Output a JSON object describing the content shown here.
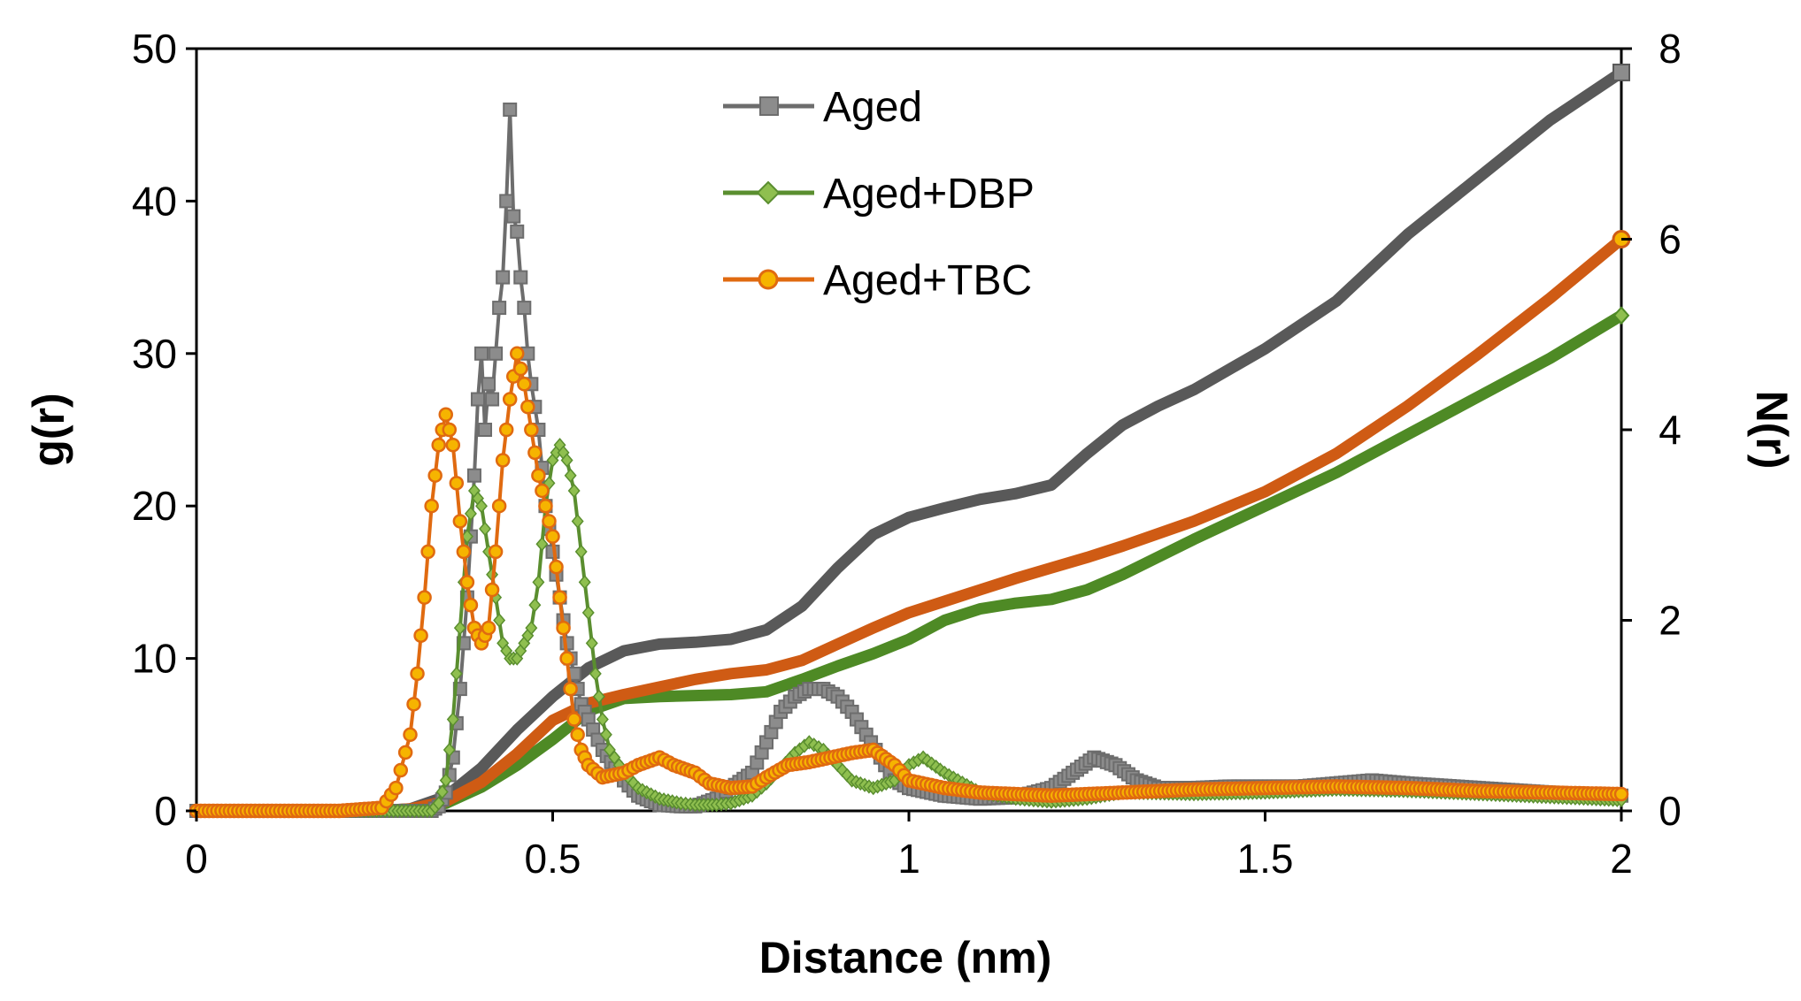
{
  "chart_data": {
    "type": "line",
    "title": "",
    "xlabel": "Distance (nm)",
    "ylabel": "g(r)",
    "y2label": "N(r)",
    "xlim": [
      0,
      2
    ],
    "ylim": [
      0,
      50
    ],
    "y2lim": [
      0,
      8
    ],
    "x_ticks": [
      "0",
      "0.5",
      "1",
      "1.5",
      "2"
    ],
    "y_ticks": [
      "0",
      "10",
      "20",
      "30",
      "40",
      "50"
    ],
    "y2_ticks": [
      "0",
      "2",
      "4",
      "6",
      "8"
    ],
    "legend_position": "top-center",
    "series": [
      {
        "name": "Aged",
        "color": "#6d6d6d",
        "marker": "square",
        "axis": "left",
        "kind": "g(r)",
        "x": [
          0,
          0.1,
          0.2,
          0.3,
          0.33,
          0.34,
          0.35,
          0.36,
          0.37,
          0.38,
          0.39,
          0.395,
          0.4,
          0.405,
          0.41,
          0.415,
          0.42,
          0.425,
          0.43,
          0.435,
          0.44,
          0.445,
          0.45,
          0.455,
          0.46,
          0.465,
          0.47,
          0.48,
          0.49,
          0.5,
          0.51,
          0.52,
          0.53,
          0.54,
          0.55,
          0.57,
          0.6,
          0.62,
          0.65,
          0.68,
          0.7,
          0.73,
          0.75,
          0.78,
          0.8,
          0.82,
          0.84,
          0.86,
          0.88,
          0.9,
          0.92,
          0.94,
          0.96,
          0.98,
          1.0,
          1.05,
          1.1,
          1.15,
          1.2,
          1.23,
          1.26,
          1.29,
          1.32,
          1.35,
          1.4,
          1.45,
          1.5,
          1.55,
          1.6,
          1.65,
          1.7,
          1.8,
          1.9,
          2.0
        ],
        "values": [
          0,
          0,
          0,
          0,
          0,
          0.3,
          1.2,
          3.5,
          8,
          14,
          22,
          27,
          30,
          25,
          28,
          27,
          30,
          33,
          35,
          40,
          46,
          39,
          38,
          35,
          33,
          30,
          28,
          25,
          20,
          17,
          14,
          11,
          9,
          7,
          6,
          4,
          2,
          1,
          0.4,
          0.3,
          0.3,
          0.8,
          1.5,
          2.5,
          4.5,
          6.5,
          7.5,
          8,
          8,
          7.5,
          6.5,
          5,
          3.5,
          2,
          1.5,
          1,
          0.8,
          0.9,
          1.5,
          2.5,
          3.5,
          3,
          2,
          1.5,
          1.5,
          1.6,
          1.6,
          1.6,
          1.8,
          2,
          1.8,
          1.5,
          1.2,
          1.0
        ]
      },
      {
        "name": "Aged+DBP",
        "color": "#5a8e2f",
        "marker": "diamond",
        "axis": "left",
        "kind": "g(r)",
        "x": [
          0,
          0.1,
          0.2,
          0.3,
          0.33,
          0.34,
          0.35,
          0.36,
          0.37,
          0.38,
          0.39,
          0.4,
          0.41,
          0.42,
          0.43,
          0.44,
          0.45,
          0.46,
          0.47,
          0.48,
          0.49,
          0.5,
          0.51,
          0.52,
          0.53,
          0.54,
          0.55,
          0.56,
          0.57,
          0.58,
          0.6,
          0.62,
          0.65,
          0.68,
          0.7,
          0.73,
          0.75,
          0.78,
          0.8,
          0.82,
          0.84,
          0.86,
          0.88,
          0.9,
          0.92,
          0.95,
          0.98,
          1.0,
          1.02,
          1.05,
          1.1,
          1.15,
          1.2,
          1.25,
          1.3,
          1.4,
          1.5,
          1.6,
          1.7,
          1.8,
          1.9,
          2.0
        ],
        "values": [
          0,
          0,
          0,
          0,
          0,
          0.5,
          2,
          6,
          12,
          18,
          21,
          20,
          17,
          14,
          11,
          10,
          10,
          11,
          12,
          15,
          20,
          23,
          24,
          23,
          21,
          17,
          13,
          9,
          6,
          4,
          2.5,
          1.5,
          0.8,
          0.5,
          0.4,
          0.4,
          0.5,
          1,
          1.8,
          2.8,
          3.8,
          4.5,
          4,
          3,
          2,
          1.5,
          2,
          3,
          3.5,
          2.5,
          1.2,
          0.8,
          0.6,
          0.8,
          1.2,
          1.1,
          1.2,
          1.4,
          1.3,
          1.1,
          0.9,
          0.7
        ]
      },
      {
        "name": "Aged+TBC",
        "color": "#e06a10",
        "marker": "circle",
        "axis": "left",
        "kind": "g(r)",
        "x": [
          0,
          0.1,
          0.2,
          0.26,
          0.28,
          0.3,
          0.31,
          0.32,
          0.33,
          0.34,
          0.35,
          0.36,
          0.37,
          0.38,
          0.39,
          0.4,
          0.41,
          0.42,
          0.43,
          0.44,
          0.45,
          0.46,
          0.47,
          0.48,
          0.49,
          0.5,
          0.51,
          0.52,
          0.53,
          0.54,
          0.55,
          0.57,
          0.6,
          0.62,
          0.65,
          0.67,
          0.7,
          0.72,
          0.75,
          0.78,
          0.8,
          0.83,
          0.86,
          0.89,
          0.92,
          0.95,
          0.98,
          1.0,
          1.05,
          1.1,
          1.2,
          1.3,
          1.4,
          1.5,
          1.6,
          1.7,
          1.8,
          1.9,
          2.0
        ],
        "values": [
          0,
          0,
          0,
          0.2,
          1.5,
          5,
          9,
          14,
          20,
          24,
          26,
          24,
          19,
          15,
          12,
          11,
          12,
          17,
          23,
          27,
          30,
          28,
          25,
          22,
          20,
          18,
          14,
          10,
          6,
          4,
          3,
          2.2,
          2.5,
          3,
          3.5,
          3,
          2.5,
          1.8,
          1.5,
          1.6,
          2.2,
          3,
          3.2,
          3.5,
          3.8,
          4,
          3,
          2,
          1.5,
          1.2,
          1,
          1.2,
          1.4,
          1.5,
          1.6,
          1.5,
          1.3,
          1.2,
          1.1
        ]
      },
      {
        "name": "Aged N(r)",
        "color": "#595959",
        "marker": "none",
        "axis": "right",
        "kind": "N(r)",
        "x": [
          0,
          0.25,
          0.3,
          0.35,
          0.4,
          0.45,
          0.5,
          0.55,
          0.6,
          0.65,
          0.7,
          0.75,
          0.8,
          0.85,
          0.9,
          0.95,
          1.0,
          1.05,
          1.1,
          1.15,
          1.2,
          1.25,
          1.3,
          1.35,
          1.4,
          1.5,
          1.6,
          1.7,
          1.8,
          1.9,
          2.0
        ],
        "values": [
          0,
          0,
          0.02,
          0.15,
          0.45,
          0.85,
          1.2,
          1.5,
          1.68,
          1.75,
          1.77,
          1.8,
          1.9,
          2.15,
          2.55,
          2.9,
          3.08,
          3.18,
          3.27,
          3.33,
          3.42,
          3.75,
          4.05,
          4.25,
          4.42,
          4.85,
          5.35,
          6.05,
          6.65,
          7.25,
          7.75
        ]
      },
      {
        "name": "Aged+DBP N(r)",
        "color": "#4e8a25",
        "marker": "none",
        "axis": "right",
        "kind": "N(r)",
        "x": [
          0,
          0.25,
          0.3,
          0.35,
          0.4,
          0.45,
          0.5,
          0.55,
          0.6,
          0.65,
          0.7,
          0.75,
          0.8,
          0.85,
          0.9,
          0.95,
          1.0,
          1.05,
          1.1,
          1.15,
          1.2,
          1.25,
          1.3,
          1.4,
          1.5,
          1.6,
          1.7,
          1.8,
          1.9,
          2.0
        ],
        "values": [
          0,
          0,
          0.01,
          0.08,
          0.25,
          0.48,
          0.75,
          1.05,
          1.18,
          1.2,
          1.21,
          1.22,
          1.25,
          1.38,
          1.52,
          1.65,
          1.8,
          2.0,
          2.12,
          2.18,
          2.22,
          2.32,
          2.48,
          2.85,
          3.2,
          3.55,
          3.95,
          4.35,
          4.75,
          5.2
        ]
      },
      {
        "name": "Aged+TBC N(r)",
        "color": "#cf5b14",
        "marker": "circle-end",
        "axis": "right",
        "kind": "N(r)",
        "x": [
          0,
          0.25,
          0.3,
          0.35,
          0.4,
          0.45,
          0.5,
          0.55,
          0.6,
          0.65,
          0.7,
          0.75,
          0.8,
          0.85,
          0.9,
          0.95,
          1.0,
          1.05,
          1.1,
          1.15,
          1.2,
          1.25,
          1.3,
          1.4,
          1.5,
          1.6,
          1.7,
          1.8,
          1.9,
          2.0
        ],
        "values": [
          0,
          0,
          0.02,
          0.1,
          0.3,
          0.6,
          0.95,
          1.13,
          1.22,
          1.3,
          1.38,
          1.44,
          1.48,
          1.58,
          1.75,
          1.92,
          2.08,
          2.2,
          2.32,
          2.44,
          2.55,
          2.66,
          2.78,
          3.04,
          3.35,
          3.75,
          4.25,
          4.8,
          5.38,
          6.0
        ]
      }
    ]
  }
}
